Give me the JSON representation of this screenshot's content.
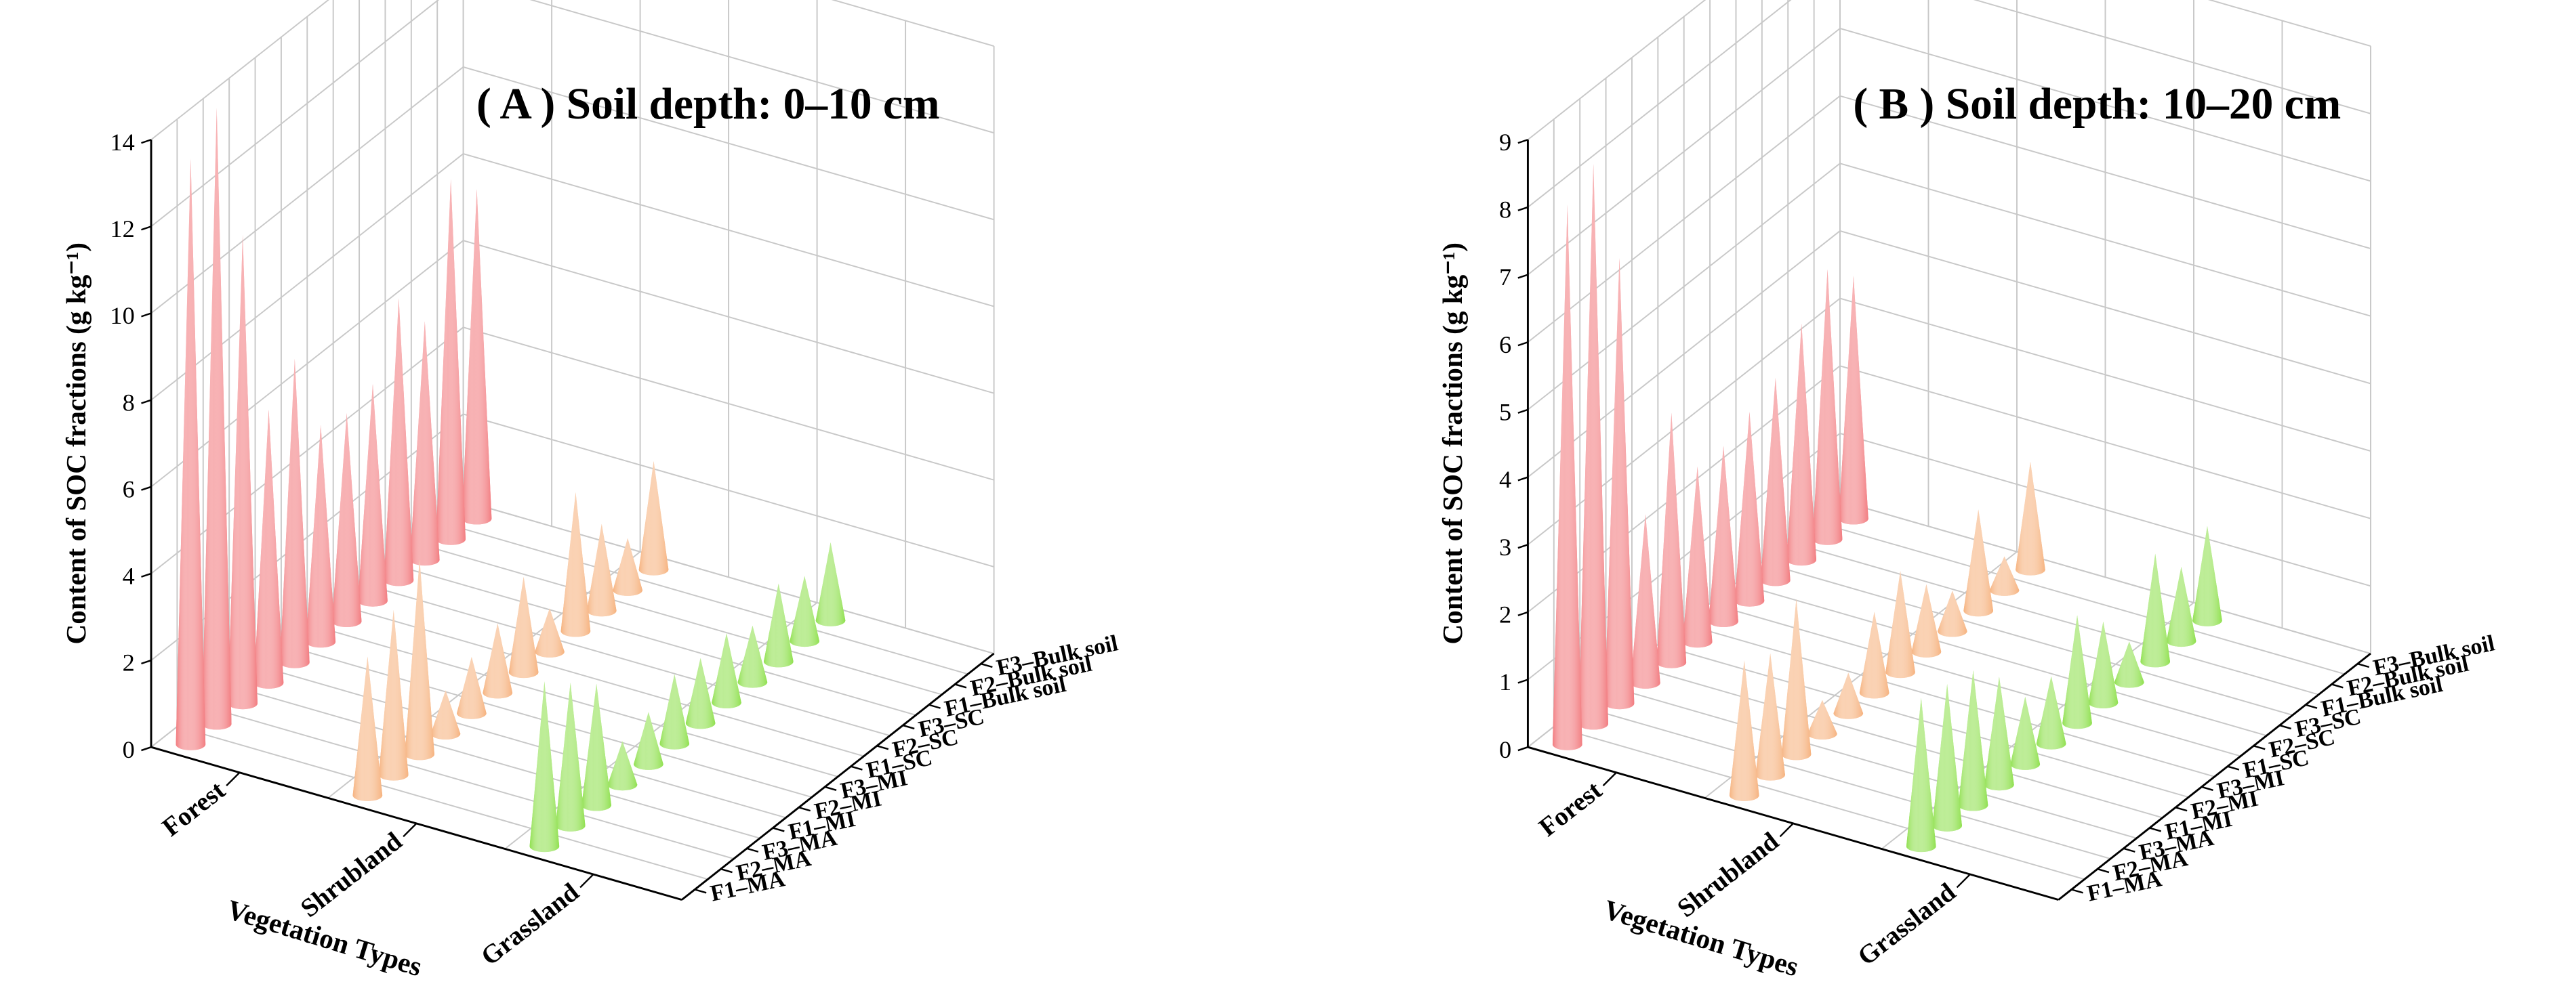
{
  "chart_data": [
    {
      "type": "cone3d",
      "title": "( A ) Soil depth: 0–10 cm",
      "xlabel": "Vegetation Types",
      "ylabel": "Content of SOC fractions (g kg⁻¹)",
      "categories": [
        "Forest",
        "Shrubland",
        "Grassland"
      ],
      "category_colors": [
        "#f27b7f",
        "#f6b27e",
        "#8fe04e"
      ],
      "ylim": [
        0,
        14
      ],
      "yticks": [
        0,
        2,
        4,
        6,
        8,
        10,
        12,
        14
      ],
      "grid": true,
      "series": [
        {
          "name": "F1–MA",
          "values": [
            13.5,
            3.2,
            3.8
          ]
        },
        {
          "name": "F2–MA",
          "values": [
            14.2,
            3.8,
            3.3
          ]
        },
        {
          "name": "F3–MA",
          "values": [
            10.8,
            4.5,
            2.8
          ]
        },
        {
          "name": "F1–MI",
          "values": [
            6.3,
            1.0,
            1.0
          ]
        },
        {
          "name": "F2–MI",
          "values": [
            7.0,
            1.3,
            1.2
          ]
        },
        {
          "name": "F3–MI",
          "values": [
            5.0,
            1.6,
            1.6
          ]
        },
        {
          "name": "F1–SC",
          "values": [
            4.8,
            2.2,
            1.5
          ]
        },
        {
          "name": "F2–SC",
          "values": [
            5.0,
            1.0,
            1.6
          ]
        },
        {
          "name": "F3–SC",
          "values": [
            6.5,
            3.2,
            1.3
          ]
        },
        {
          "name": "F1–Bulk soil",
          "values": [
            5.5,
            2.0,
            1.8
          ]
        },
        {
          "name": "F2–Bulk soil",
          "values": [
            8.3,
            1.2,
            1.5
          ]
        },
        {
          "name": "F3–Bulk soil",
          "values": [
            7.6,
            2.5,
            1.8
          ]
        }
      ]
    },
    {
      "type": "cone3d",
      "title": "( B ) Soil depth: 10–20 cm",
      "xlabel": "Vegetation Types",
      "ylabel": "Content of SOC fractions (g kg⁻¹)",
      "categories": [
        "Forest",
        "Shrubland",
        "Grassland"
      ],
      "category_colors": [
        "#f27b7f",
        "#f6b27e",
        "#8fe04e"
      ],
      "ylim": [
        0,
        9
      ],
      "yticks": [
        0,
        1,
        2,
        3,
        4,
        5,
        6,
        7,
        8,
        9
      ],
      "grid": true,
      "series": [
        {
          "name": "F1–MA",
          "values": [
            8.0,
            2.0,
            2.2
          ]
        },
        {
          "name": "F2–MA",
          "values": [
            8.3,
            1.8,
            2.1
          ]
        },
        {
          "name": "F3–MA",
          "values": [
            6.6,
            2.3,
            2.0
          ]
        },
        {
          "name": "F1–MI",
          "values": [
            2.5,
            0.5,
            1.6
          ]
        },
        {
          "name": "F2–MI",
          "values": [
            3.7,
            0.6,
            1.0
          ]
        },
        {
          "name": "F3–MI",
          "values": [
            2.6,
            1.2,
            1.0
          ]
        },
        {
          "name": "F1–SC",
          "values": [
            2.6,
            1.5,
            1.6
          ]
        },
        {
          "name": "F2–SC",
          "values": [
            2.8,
            1.0,
            1.2
          ]
        },
        {
          "name": "F3–SC",
          "values": [
            3.0,
            0.6,
            0.6
          ]
        },
        {
          "name": "F1–Bulk soil",
          "values": [
            3.5,
            1.5,
            1.6
          ]
        },
        {
          "name": "F2–Bulk soil",
          "values": [
            4.0,
            0.5,
            1.1
          ]
        },
        {
          "name": "F3–Bulk soil",
          "values": [
            3.6,
            1.6,
            1.4
          ]
        }
      ]
    }
  ]
}
